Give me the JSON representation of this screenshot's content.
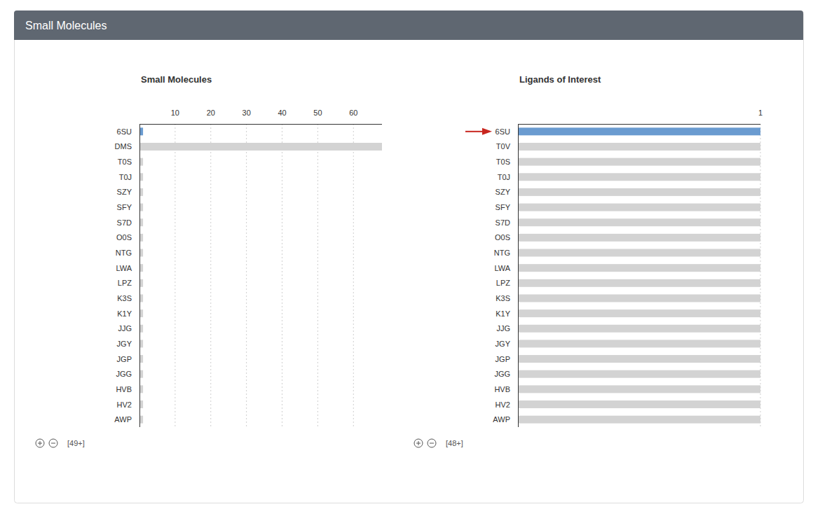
{
  "header": {
    "title": "Small Molecules"
  },
  "chart_data": [
    {
      "type": "bar",
      "title": "Small Molecules",
      "orientation": "horizontal",
      "grid": true,
      "categories": [
        "6SU",
        "DMS",
        "T0S",
        "T0J",
        "SZY",
        "SFY",
        "S7D",
        "O0S",
        "NTG",
        "LWA",
        "LPZ",
        "K3S",
        "K1Y",
        "JJG",
        "JGY",
        "JGP",
        "JGG",
        "HVB",
        "HV2",
        "AWP"
      ],
      "values": [
        1,
        68,
        1,
        1,
        1,
        1,
        1,
        1,
        1,
        1,
        1,
        1,
        1,
        1,
        1,
        1,
        1,
        1,
        1,
        1
      ],
      "colors": [
        "#6a9bd0",
        "#d3d3d3",
        "#d3d3d3",
        "#d3d3d3",
        "#d3d3d3",
        "#d3d3d3",
        "#d3d3d3",
        "#d3d3d3",
        "#d3d3d3",
        "#d3d3d3",
        "#d3d3d3",
        "#d3d3d3",
        "#d3d3d3",
        "#d3d3d3",
        "#d3d3d3",
        "#d3d3d3",
        "#d3d3d3",
        "#d3d3d3",
        "#d3d3d3",
        "#d3d3d3"
      ],
      "xlim": [
        0,
        68
      ],
      "xticks": [
        10,
        20,
        30,
        40,
        50,
        60
      ],
      "annotations": [
        "[49+]"
      ]
    },
    {
      "type": "bar",
      "title": "Ligands of Interest",
      "orientation": "horizontal",
      "grid": true,
      "categories": [
        "6SU",
        "T0V",
        "T0S",
        "T0J",
        "SZY",
        "SFY",
        "S7D",
        "O0S",
        "NTG",
        "LWA",
        "LPZ",
        "K3S",
        "K1Y",
        "JJG",
        "JGY",
        "JGP",
        "JGG",
        "HVB",
        "HV2",
        "AWP"
      ],
      "values": [
        1,
        1,
        1,
        1,
        1,
        1,
        1,
        1,
        1,
        1,
        1,
        1,
        1,
        1,
        1,
        1,
        1,
        1,
        1,
        1
      ],
      "colors": [
        "#6a9bd0",
        "#d3d3d3",
        "#d3d3d3",
        "#d3d3d3",
        "#d3d3d3",
        "#d3d3d3",
        "#d3d3d3",
        "#d3d3d3",
        "#d3d3d3",
        "#d3d3d3",
        "#d3d3d3",
        "#d3d3d3",
        "#d3d3d3",
        "#d3d3d3",
        "#d3d3d3",
        "#d3d3d3",
        "#d3d3d3",
        "#d3d3d3",
        "#d3d3d3",
        "#d3d3d3"
      ],
      "xlim": [
        0,
        1
      ],
      "xticks": [
        1
      ],
      "annotations": [
        "[48+]"
      ]
    }
  ]
}
